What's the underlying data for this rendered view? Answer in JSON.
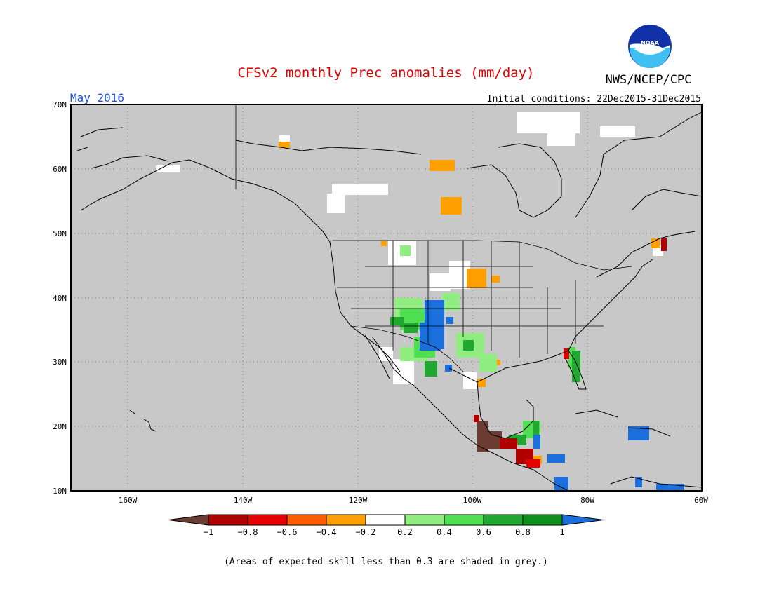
{
  "title": "CFSv2 monthly Prec anomalies (mm/day)",
  "agency": "NWS/NCEP/CPC",
  "logo_text": "NOAA",
  "valid_month": "May 2016",
  "initial_conditions": "Initial conditions: 22Dec2015-31Dec2015",
  "footer_note": "(Areas of expected skill less than 0.3 are shaded in grey.)",
  "map": {
    "lat_labels": [
      "10N",
      "20N",
      "30N",
      "40N",
      "50N",
      "60N",
      "70N"
    ],
    "lon_labels": [
      "160W",
      "140W",
      "120W",
      "100W",
      "80W",
      "60W"
    ],
    "background_color": "#c8c8c8"
  },
  "colorbar": {
    "labels": [
      "−1",
      "−0.8",
      "−0.6",
      "−0.4",
      "−0.2",
      "0.2",
      "0.4",
      "0.6",
      "0.8",
      "1"
    ],
    "colors": [
      "#6b3d32",
      "#b00000",
      "#e80000",
      "#ff5a00",
      "#ff9f00",
      "#ffffff",
      "#90ee80",
      "#4ee050",
      "#20a830",
      "#0f8f1c",
      "#1a6fdc"
    ]
  },
  "colors": {
    "title": "#e00000",
    "valid_month": "#1a4fe0",
    "text": "#000000"
  }
}
